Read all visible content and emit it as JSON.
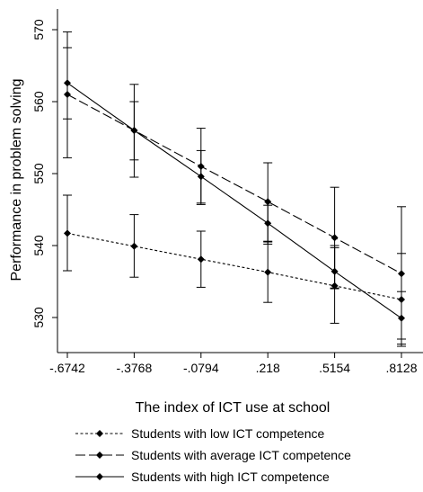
{
  "chart_data": {
    "type": "line",
    "title": "",
    "xlabel": "The index of ICT use at school",
    "ylabel": "Performance in problem solving",
    "x": [
      -0.6742,
      -0.3768,
      -0.0794,
      0.218,
      0.5154,
      0.8128
    ],
    "x_tick_labels": [
      "-.6742",
      "-.3768",
      "-.0794",
      ".218",
      ".5154",
      ".8128"
    ],
    "y_ticks": [
      530,
      540,
      550,
      560,
      570
    ],
    "y_tick_labels": [
      "530",
      "540",
      "550",
      "560",
      "570"
    ],
    "xlim": [
      -0.6742,
      0.8128
    ],
    "ylim": [
      525,
      570
    ],
    "grid": false,
    "legend_position": "bottom",
    "series": [
      {
        "name": "Students with low ICT competence",
        "line_style": "dotted",
        "values": [
          541.7,
          539.9,
          538.1,
          536.3,
          534.4,
          532.5
        ],
        "ci_low": [
          536.5,
          535.6,
          534.2,
          532.1,
          529.2,
          527.0
        ],
        "ci_high": [
          547.0,
          544.3,
          542.0,
          540.5,
          539.7,
          538.9
        ]
      },
      {
        "name": "Students with average ICT competence",
        "line_style": "dashed",
        "values": [
          561.0,
          556.0,
          551.0,
          546.1,
          541.1,
          536.1
        ],
        "ci_low": [
          552.2,
          549.5,
          545.9,
          540.2,
          534.1,
          526.0
        ],
        "ci_high": [
          569.7,
          562.4,
          556.3,
          551.5,
          548.1,
          545.4
        ]
      },
      {
        "name": "Students with high ICT competence",
        "line_style": "solid",
        "values": [
          562.6,
          556.0,
          549.6,
          543.1,
          536.4,
          529.9
        ],
        "ci_low": [
          557.6,
          551.9,
          545.7,
          540.6,
          534.0,
          526.3
        ],
        "ci_high": [
          567.5,
          560.0,
          553.2,
          545.6,
          540.0,
          533.6
        ]
      }
    ]
  }
}
